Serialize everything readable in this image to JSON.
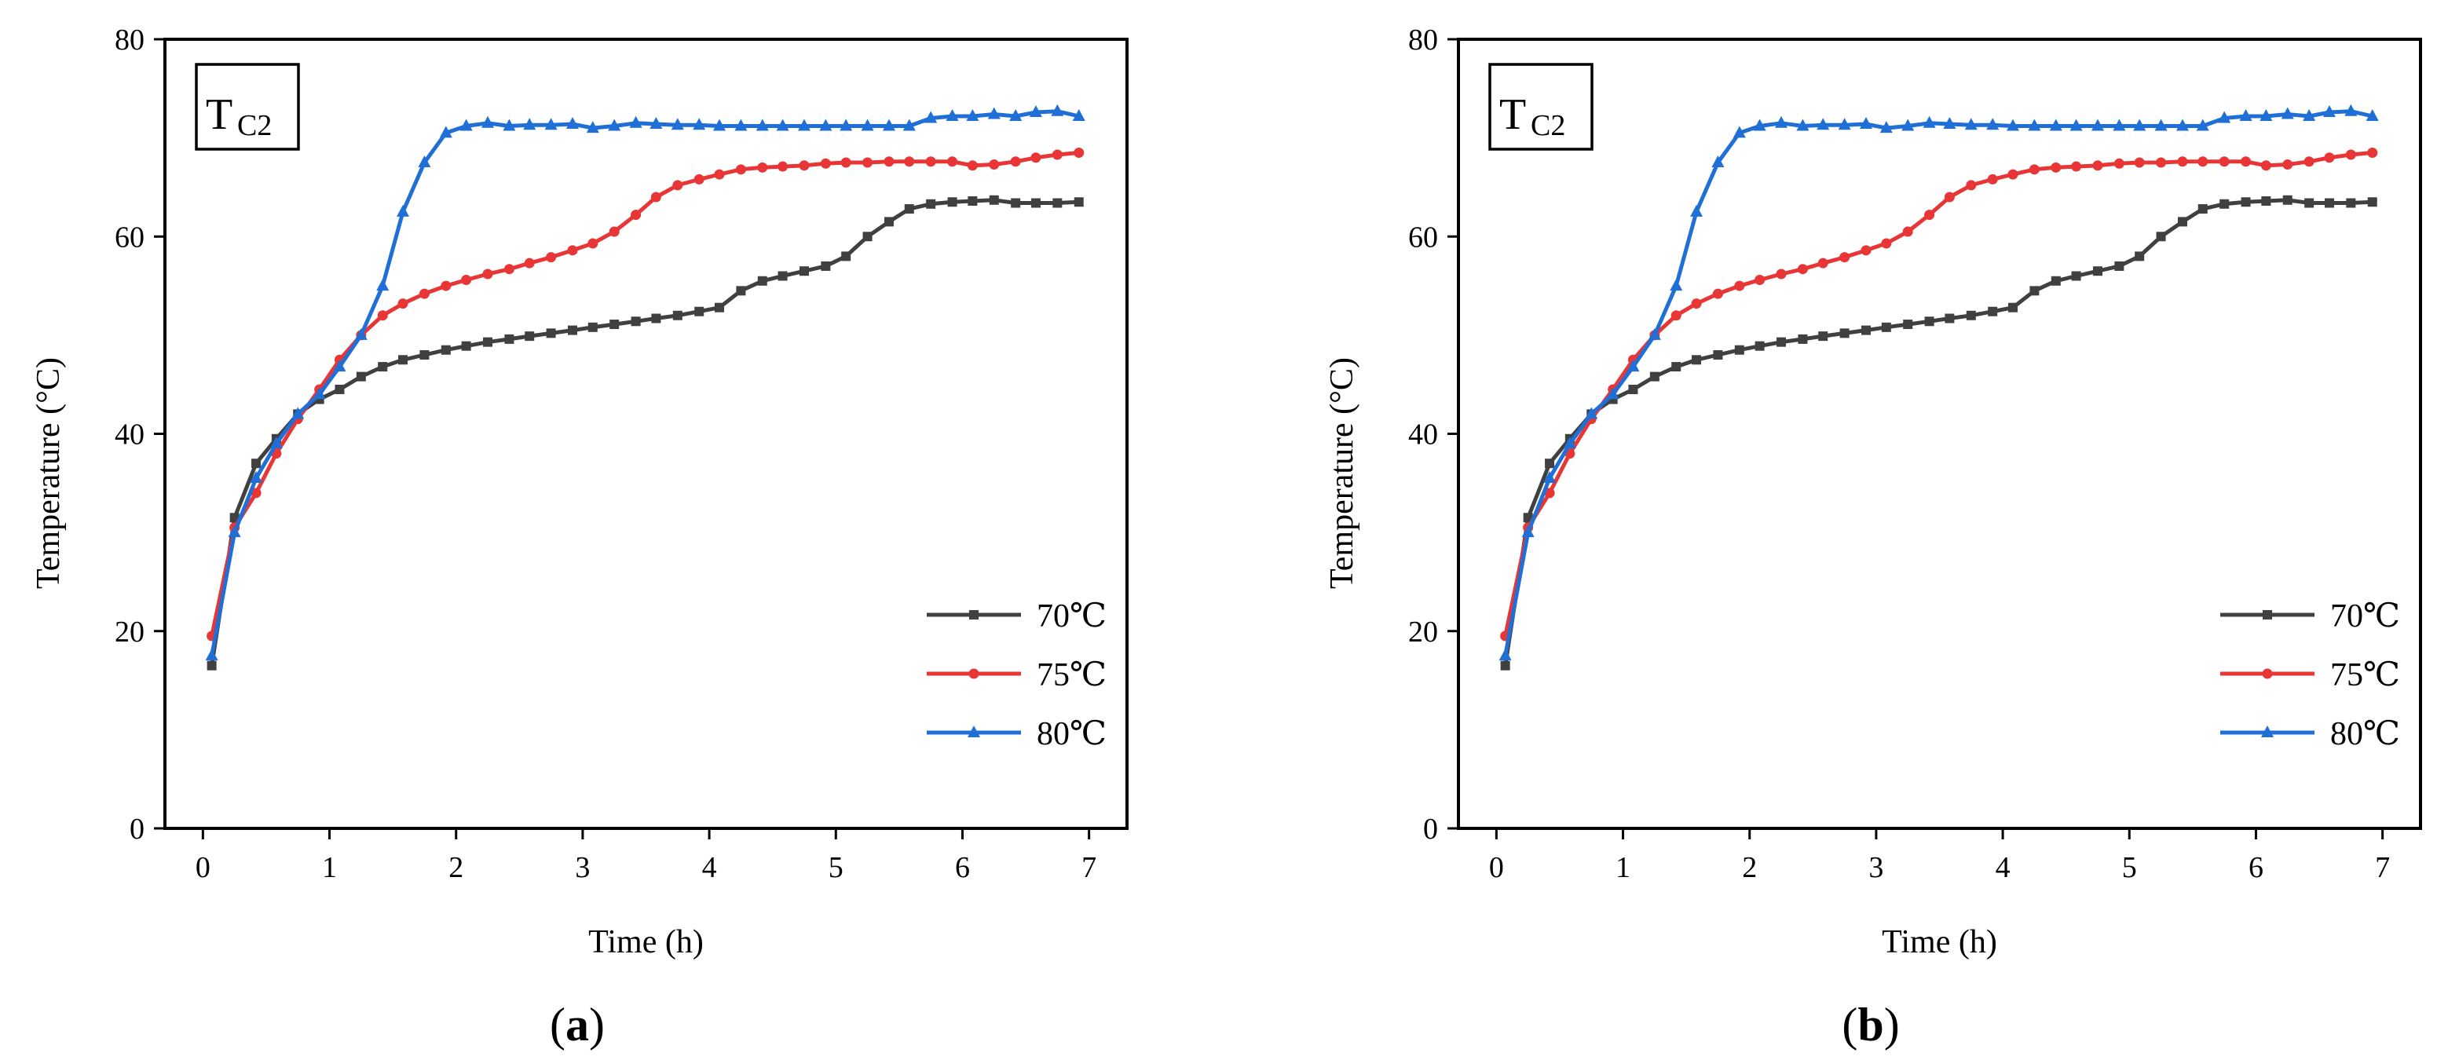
{
  "chart_data": [
    {
      "type": "line",
      "panel_label": "a",
      "annotation": {
        "main": "T",
        "sub": "C2"
      },
      "xlabel": "Time (h)",
      "ylabel": "Temperature (°C)",
      "xlim": [
        -0.3,
        7.3
      ],
      "ylim": [
        0,
        80
      ],
      "xticks": [
        0,
        1,
        2,
        3,
        4,
        5,
        6,
        7
      ],
      "yticks": [
        0,
        20,
        40,
        60,
        80
      ],
      "grid": false,
      "legend_position": "bottom-right",
      "series": [
        {
          "name": "70℃",
          "color": "#404040",
          "marker": "square",
          "x": [
            0.07,
            0.25,
            0.42,
            0.58,
            0.75,
            0.92,
            1.08,
            1.25,
            1.42,
            1.58,
            1.75,
            1.92,
            2.08,
            2.25,
            2.42,
            2.58,
            2.75,
            2.92,
            3.08,
            3.25,
            3.42,
            3.58,
            3.75,
            3.92,
            4.08,
            4.25,
            4.42,
            4.58,
            4.75,
            4.92,
            5.08,
            5.25,
            5.42,
            5.58,
            5.75,
            5.92,
            6.08,
            6.25,
            6.42,
            6.58,
            6.75,
            6.92
          ],
          "y": [
            16.5,
            31.5,
            37.0,
            39.5,
            42.0,
            43.5,
            44.5,
            45.8,
            46.8,
            47.5,
            48.0,
            48.5,
            48.9,
            49.3,
            49.6,
            49.9,
            50.2,
            50.5,
            50.8,
            51.1,
            51.4,
            51.7,
            52.0,
            52.4,
            52.8,
            54.5,
            55.5,
            56.0,
            56.5,
            57.0,
            58.0,
            60.0,
            61.5,
            62.8,
            63.3,
            63.5,
            63.6,
            63.7,
            63.4,
            63.4,
            63.4,
            63.5
          ]
        },
        {
          "name": "75℃",
          "color": "#e83535",
          "marker": "circle",
          "x": [
            0.07,
            0.25,
            0.42,
            0.58,
            0.75,
            0.92,
            1.08,
            1.25,
            1.42,
            1.58,
            1.75,
            1.92,
            2.08,
            2.25,
            2.42,
            2.58,
            2.75,
            2.92,
            3.08,
            3.25,
            3.42,
            3.58,
            3.75,
            3.92,
            4.08,
            4.25,
            4.42,
            4.58,
            4.75,
            4.92,
            5.08,
            5.25,
            5.42,
            5.58,
            5.75,
            5.92,
            6.08,
            6.25,
            6.42,
            6.58,
            6.75,
            6.92
          ],
          "y": [
            19.5,
            30.5,
            34.0,
            38.0,
            41.5,
            44.5,
            47.5,
            50.0,
            52.0,
            53.2,
            54.2,
            55.0,
            55.6,
            56.2,
            56.7,
            57.3,
            57.9,
            58.6,
            59.3,
            60.5,
            62.2,
            64.0,
            65.2,
            65.8,
            66.3,
            66.8,
            67.0,
            67.1,
            67.2,
            67.4,
            67.5,
            67.5,
            67.6,
            67.6,
            67.6,
            67.6,
            67.2,
            67.3,
            67.6,
            68.0,
            68.3,
            68.5
          ]
        },
        {
          "name": "80℃",
          "color": "#1f6fd6",
          "marker": "triangle",
          "x": [
            0.07,
            0.25,
            0.42,
            0.58,
            0.75,
            0.92,
            1.08,
            1.25,
            1.42,
            1.58,
            1.75,
            1.92,
            2.08,
            2.25,
            2.42,
            2.58,
            2.75,
            2.92,
            3.08,
            3.25,
            3.42,
            3.58,
            3.75,
            3.92,
            4.08,
            4.25,
            4.42,
            4.58,
            4.75,
            4.92,
            5.08,
            5.25,
            5.42,
            5.58,
            5.75,
            5.92,
            6.08,
            6.25,
            6.42,
            6.58,
            6.75,
            6.92
          ],
          "y": [
            17.5,
            30.0,
            35.5,
            39.0,
            42.0,
            44.0,
            46.8,
            50.0,
            55.0,
            62.5,
            67.5,
            70.5,
            71.2,
            71.5,
            71.2,
            71.3,
            71.3,
            71.4,
            71.0,
            71.2,
            71.5,
            71.4,
            71.3,
            71.3,
            71.2,
            71.2,
            71.2,
            71.2,
            71.2,
            71.2,
            71.2,
            71.2,
            71.2,
            71.2,
            72.0,
            72.2,
            72.2,
            72.4,
            72.2,
            72.6,
            72.7,
            72.2
          ]
        }
      ]
    },
    {
      "type": "line",
      "panel_label": "b",
      "annotation": {
        "main": "T",
        "sub": "C2"
      },
      "xlabel": "Time (h)",
      "ylabel": "Temperature (°C)",
      "xlim": [
        -0.3,
        7.3
      ],
      "ylim": [
        0,
        80
      ],
      "xticks": [
        0,
        1,
        2,
        3,
        4,
        5,
        6,
        7
      ],
      "yticks": [
        0,
        20,
        40,
        60,
        80
      ],
      "grid": false,
      "legend_position": "bottom-right",
      "series": [
        {
          "name": "70℃",
          "color": "#404040",
          "marker": "square",
          "x": [
            0.07,
            0.25,
            0.42,
            0.58,
            0.75,
            0.92,
            1.08,
            1.25,
            1.42,
            1.58,
            1.75,
            1.92,
            2.08,
            2.25,
            2.42,
            2.58,
            2.75,
            2.92,
            3.08,
            3.25,
            3.42,
            3.58,
            3.75,
            3.92,
            4.08,
            4.25,
            4.42,
            4.58,
            4.75,
            4.92,
            5.08,
            5.25,
            5.42,
            5.58,
            5.75,
            5.92,
            6.08,
            6.25,
            6.42,
            6.58,
            6.75,
            6.92
          ],
          "y": [
            16.5,
            31.5,
            37.0,
            39.5,
            42.0,
            43.5,
            44.5,
            45.8,
            46.8,
            47.5,
            48.0,
            48.5,
            48.9,
            49.3,
            49.6,
            49.9,
            50.2,
            50.5,
            50.8,
            51.1,
            51.4,
            51.7,
            52.0,
            52.4,
            52.8,
            54.5,
            55.5,
            56.0,
            56.5,
            57.0,
            58.0,
            60.0,
            61.5,
            62.8,
            63.3,
            63.5,
            63.6,
            63.7,
            63.4,
            63.4,
            63.4,
            63.5
          ]
        },
        {
          "name": "75℃",
          "color": "#e83535",
          "marker": "circle",
          "x": [
            0.07,
            0.25,
            0.42,
            0.58,
            0.75,
            0.92,
            1.08,
            1.25,
            1.42,
            1.58,
            1.75,
            1.92,
            2.08,
            2.25,
            2.42,
            2.58,
            2.75,
            2.92,
            3.08,
            3.25,
            3.42,
            3.58,
            3.75,
            3.92,
            4.08,
            4.25,
            4.42,
            4.58,
            4.75,
            4.92,
            5.08,
            5.25,
            5.42,
            5.58,
            5.75,
            5.92,
            6.08,
            6.25,
            6.42,
            6.58,
            6.75,
            6.92
          ],
          "y": [
            19.5,
            30.5,
            34.0,
            38.0,
            41.5,
            44.5,
            47.5,
            50.0,
            52.0,
            53.2,
            54.2,
            55.0,
            55.6,
            56.2,
            56.7,
            57.3,
            57.9,
            58.6,
            59.3,
            60.5,
            62.2,
            64.0,
            65.2,
            65.8,
            66.3,
            66.8,
            67.0,
            67.1,
            67.2,
            67.4,
            67.5,
            67.5,
            67.6,
            67.6,
            67.6,
            67.6,
            67.2,
            67.3,
            67.6,
            68.0,
            68.3,
            68.5
          ]
        },
        {
          "name": "80℃",
          "color": "#1f6fd6",
          "marker": "triangle",
          "x": [
            0.07,
            0.25,
            0.42,
            0.58,
            0.75,
            0.92,
            1.08,
            1.25,
            1.42,
            1.58,
            1.75,
            1.92,
            2.08,
            2.25,
            2.42,
            2.58,
            2.75,
            2.92,
            3.08,
            3.25,
            3.42,
            3.58,
            3.75,
            3.92,
            4.08,
            4.25,
            4.42,
            4.58,
            4.75,
            4.92,
            5.08,
            5.25,
            5.42,
            5.58,
            5.75,
            5.92,
            6.08,
            6.25,
            6.42,
            6.58,
            6.75,
            6.92
          ],
          "y": [
            17.5,
            30.0,
            35.5,
            39.0,
            42.0,
            44.0,
            46.8,
            50.0,
            55.0,
            62.5,
            67.5,
            70.5,
            71.2,
            71.5,
            71.2,
            71.3,
            71.3,
            71.4,
            71.0,
            71.2,
            71.5,
            71.4,
            71.3,
            71.3,
            71.2,
            71.2,
            71.2,
            71.2,
            71.2,
            71.2,
            71.2,
            71.2,
            71.2,
            71.2,
            72.0,
            72.2,
            72.2,
            72.4,
            72.2,
            72.6,
            72.7,
            72.2
          ]
        }
      ]
    }
  ]
}
